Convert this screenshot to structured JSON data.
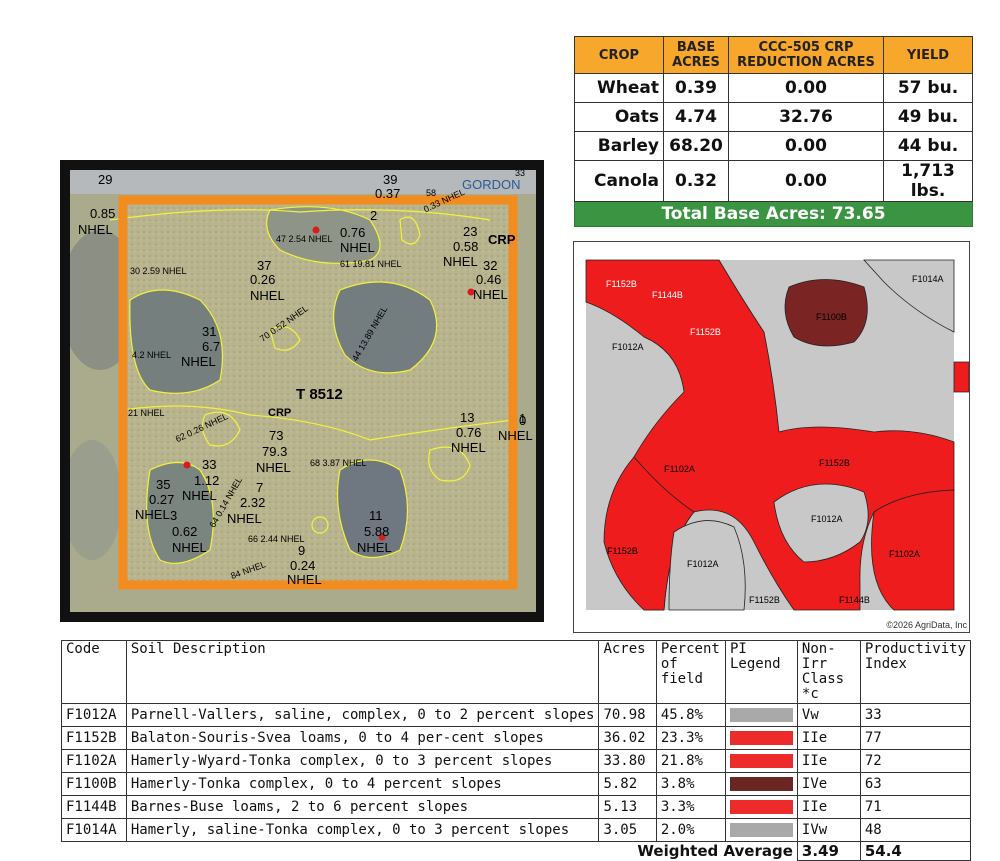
{
  "crop_table": {
    "headers": [
      "CROP",
      "BASE ACRES",
      "CCC-505 CRP REDUCTION ACRES",
      "YIELD"
    ],
    "rows": [
      {
        "crop": "Wheat",
        "base": "0.39",
        "reduction": "0.00",
        "yield": "57 bu."
      },
      {
        "crop": "Oats",
        "base": "4.74",
        "reduction": "32.76",
        "yield": "49 bu."
      },
      {
        "crop": "Barley",
        "base": "68.20",
        "reduction": "0.00",
        "yield": "44 bu."
      },
      {
        "crop": "Canola",
        "base": "0.32",
        "reduction": "0.00",
        "yield": "1,713 lbs."
      }
    ],
    "total": "Total Base Acres: 73.65",
    "colors": {
      "header": "#f7a72c",
      "total": "#3a9442"
    }
  },
  "aerial_map": {
    "tract": "T 8512",
    "program": "CRP",
    "road": "GORDON",
    "fields": [
      {
        "id": "29",
        "acres": "0.85",
        "type": "NHEL"
      },
      {
        "id": "39",
        "acres": "0.37"
      },
      {
        "id": "2",
        "acres": "0.76",
        "type": "NHEL"
      },
      {
        "id": "23",
        "acres": "0.58",
        "type": "NHEL"
      },
      {
        "id": "32",
        "acres": "0.46",
        "type": "NHEL"
      },
      {
        "id": "37",
        "acres": "0.26",
        "type": "NHEL"
      },
      {
        "id": "31",
        "acres": "6.7",
        "type": "NHEL"
      },
      {
        "id": "73",
        "acres": "79.3",
        "type": "NHEL"
      },
      {
        "id": "13",
        "acres": "0.76",
        "type": "NHEL"
      },
      {
        "id": "33",
        "acres": "1.12",
        "type": "NHEL"
      },
      {
        "id": "35",
        "acres": "0.27",
        "type": "NHEL"
      },
      {
        "id": "3",
        "acres": "0.62",
        "type": "NHEL"
      },
      {
        "id": "7",
        "acres": "2.32",
        "type": "NHEL"
      },
      {
        "id": "11",
        "acres": "5.88",
        "type": "NHEL"
      },
      {
        "id": "9",
        "acres": "0.24",
        "type": "NHEL"
      }
    ],
    "small_labels": [
      "47 2.54 NHEL",
      "61 19.81 NHEL",
      "30 2.59 NHEL",
      "70 0.52 NHEL",
      "44 13.89 NHEL",
      "4.2 NHEL",
      "21 NHEL",
      "62 0.26 NHEL",
      "68 3.87 NHEL",
      "64 0.14 NHEL",
      "66 2.44 NHEL",
      "84 NHEL",
      "58",
      "0.33 NHEL",
      "CRP",
      "33",
      "0",
      "1",
      "NHEL"
    ],
    "colors": {
      "frame": "#f28c1e",
      "boundary": "#f2f23a"
    }
  },
  "soil_map": {
    "labels": [
      "F1152B",
      "F1144B",
      "F1152B",
      "F1012A",
      "F1100B",
      "F1014A",
      "F1102A",
      "F1152B",
      "F1012A",
      "F1152B",
      "F1012A",
      "F1102A",
      "F1152B",
      "F1144B"
    ],
    "copyright": "©2026 AgriData, Inc",
    "colors": {
      "red": "#ee1c1c",
      "gray": "#c8c8c8",
      "dark": "#7a2424"
    }
  },
  "soil_table": {
    "headers": [
      "Code",
      "Soil Description",
      "Acres",
      "Percent of field",
      "PI Legend",
      "Non-Irr Class *c",
      "Productivity Index"
    ],
    "rows": [
      {
        "code": "F1012A",
        "desc": "Parnell-Vallers, saline, complex, 0 to 2 percent slopes",
        "acres": "70.98",
        "pct": "45.8%",
        "color": "#a9a9a9",
        "class": "Vw",
        "pi": "33"
      },
      {
        "code": "F1152B",
        "desc": "Balaton-Souris-Svea loams, 0 to 4 per-cent slopes",
        "acres": "36.02",
        "pct": "23.3%",
        "color": "#ee2b2b",
        "class": "IIe",
        "pi": "77"
      },
      {
        "code": "F1102A",
        "desc": "Hamerly-Wyard-Tonka complex, 0 to 3 percent slopes",
        "acres": "33.80",
        "pct": "21.8%",
        "color": "#ee2b2b",
        "class": "IIe",
        "pi": "72"
      },
      {
        "code": "F1100B",
        "desc": "Hamerly-Tonka complex, 0 to 4 percent slopes",
        "acres": "5.82",
        "pct": "3.8%",
        "color": "#6b2624",
        "class": "IVe",
        "pi": "63"
      },
      {
        "code": "F1144B",
        "desc": "Barnes-Buse loams, 2 to 6 percent slopes",
        "acres": "5.13",
        "pct": "3.3%",
        "color": "#ee2b2b",
        "class": "IIe",
        "pi": "71"
      },
      {
        "code": "F1014A",
        "desc": "Hamerly, saline-Tonka complex, 0 to 3 percent slopes",
        "acres": "3.05",
        "pct": "2.0%",
        "color": "#a9a9a9",
        "class": "IVw",
        "pi": "48"
      }
    ],
    "weighted_label": "Weighted Average",
    "weighted_class": "3.49",
    "weighted_pi": "54.4"
  }
}
